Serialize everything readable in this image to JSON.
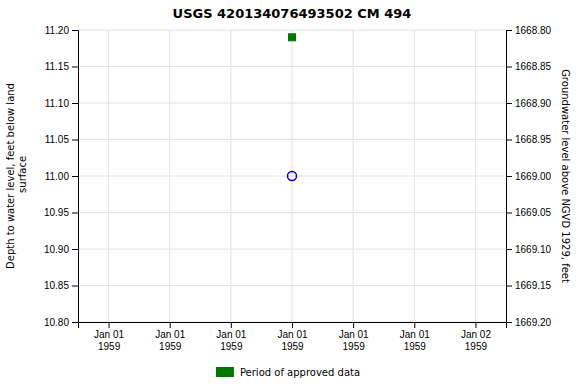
{
  "chart_data": {
    "type": "scatter",
    "title": "USGS 420134076493502 CM 494",
    "categories": [
      "Jan 01\n1959",
      "Jan 01\n1959",
      "Jan 01\n1959",
      "Jan 01\n1959",
      "Jan 01\n1959",
      "Jan 01\n1959",
      "Jan 02\n1959"
    ],
    "series": [
      {
        "color": "#0000cc",
        "marker": "circle",
        "values": [
          null,
          null,
          null,
          11.0,
          null,
          null,
          null
        ]
      },
      {
        "name": "Period of approved data",
        "color": "#007700",
        "marker": "square",
        "values": [
          null,
          null,
          null,
          11.19,
          null,
          null,
          null
        ]
      }
    ],
    "ylabel": "Depth to water level, feet below land\n surface",
    "y2label": "Groundwater level above NGVD 1929, feet",
    "ylim": [
      10.8,
      11.2
    ],
    "yticks": [
      {
        "value": 10.8,
        "label": "10.80"
      },
      {
        "value": 10.85,
        "label": "10.85"
      },
      {
        "value": 10.9,
        "label": "10.90"
      },
      {
        "value": 10.95,
        "label": "10.95"
      },
      {
        "value": 11.0,
        "label": "11.00"
      },
      {
        "value": 11.05,
        "label": "11.05"
      },
      {
        "value": 11.1,
        "label": "11.10"
      },
      {
        "value": 11.15,
        "label": "11.15"
      },
      {
        "value": 11.2,
        "label": "11.20"
      }
    ],
    "y2lim": [
      1669.2,
      1668.8
    ],
    "y2ticks": [
      {
        "value": 1669.2,
        "label": "1669.20"
      },
      {
        "value": 1669.15,
        "label": "1669.15"
      },
      {
        "value": 1669.1,
        "label": "1669.10"
      },
      {
        "value": 1669.05,
        "label": "1669.05"
      },
      {
        "value": 1669,
        "label": "1669.00"
      },
      {
        "value": 1668.95,
        "label": "1668.95"
      },
      {
        "value": 1668.9,
        "label": "1668.90"
      },
      {
        "value": 1668.85,
        "label": "1668.85"
      },
      {
        "value": 1668.8,
        "label": "1668.80"
      }
    ],
    "grid": true,
    "legend": "bottom"
  }
}
